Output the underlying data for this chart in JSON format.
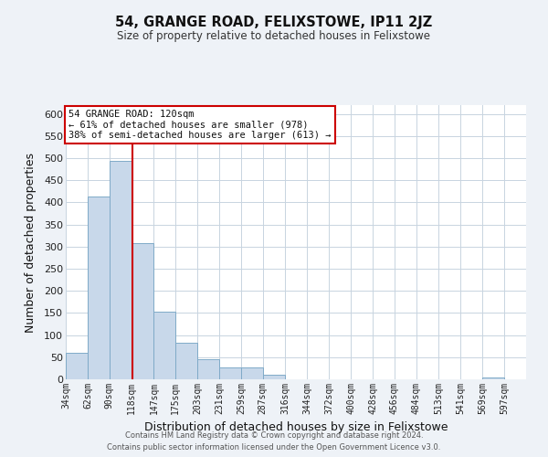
{
  "title": "54, GRANGE ROAD, FELIXSTOWE, IP11 2JZ",
  "subtitle": "Size of property relative to detached houses in Felixstowe",
  "xlabel": "Distribution of detached houses by size in Felixstowe",
  "ylabel": "Number of detached properties",
  "bar_left_edges": [
    34,
    62,
    90,
    118,
    147,
    175,
    203,
    231,
    259,
    287,
    316,
    344,
    372,
    400,
    428,
    456,
    484,
    513,
    541,
    569
  ],
  "bar_heights": [
    60,
    413,
    493,
    308,
    152,
    83,
    46,
    27,
    27,
    11,
    0,
    0,
    0,
    0,
    0,
    0,
    0,
    0,
    0,
    5
  ],
  "bar_widths": [
    28,
    28,
    28,
    29,
    28,
    28,
    28,
    28,
    28,
    29,
    28,
    28,
    28,
    28,
    28,
    28,
    29,
    28,
    28,
    28
  ],
  "bar_color": "#c8d8ea",
  "bar_edge_color": "#7faac8",
  "tick_labels": [
    "34sqm",
    "62sqm",
    "90sqm",
    "118sqm",
    "147sqm",
    "175sqm",
    "203sqm",
    "231sqm",
    "259sqm",
    "287sqm",
    "316sqm",
    "344sqm",
    "372sqm",
    "400sqm",
    "428sqm",
    "456sqm",
    "484sqm",
    "513sqm",
    "541sqm",
    "569sqm",
    "597sqm"
  ],
  "tick_positions": [
    34,
    62,
    90,
    118,
    147,
    175,
    203,
    231,
    259,
    287,
    316,
    344,
    372,
    400,
    428,
    456,
    484,
    513,
    541,
    569,
    597
  ],
  "vline_x": 120,
  "vline_color": "#cc0000",
  "ylim": [
    0,
    620
  ],
  "yticks": [
    0,
    50,
    100,
    150,
    200,
    250,
    300,
    350,
    400,
    450,
    500,
    550,
    600
  ],
  "xlim_min": 34,
  "xlim_max": 625,
  "annotation_line1": "54 GRANGE ROAD: 120sqm",
  "annotation_line2": "← 61% of detached houses are smaller (978)",
  "annotation_line3": "38% of semi-detached houses are larger (613) →",
  "footer_line1": "Contains HM Land Registry data © Crown copyright and database right 2024.",
  "footer_line2": "Contains public sector information licensed under the Open Government Licence v3.0.",
  "bg_color": "#eef2f7",
  "plot_bg_color": "#ffffff",
  "grid_color": "#c8d4e0"
}
